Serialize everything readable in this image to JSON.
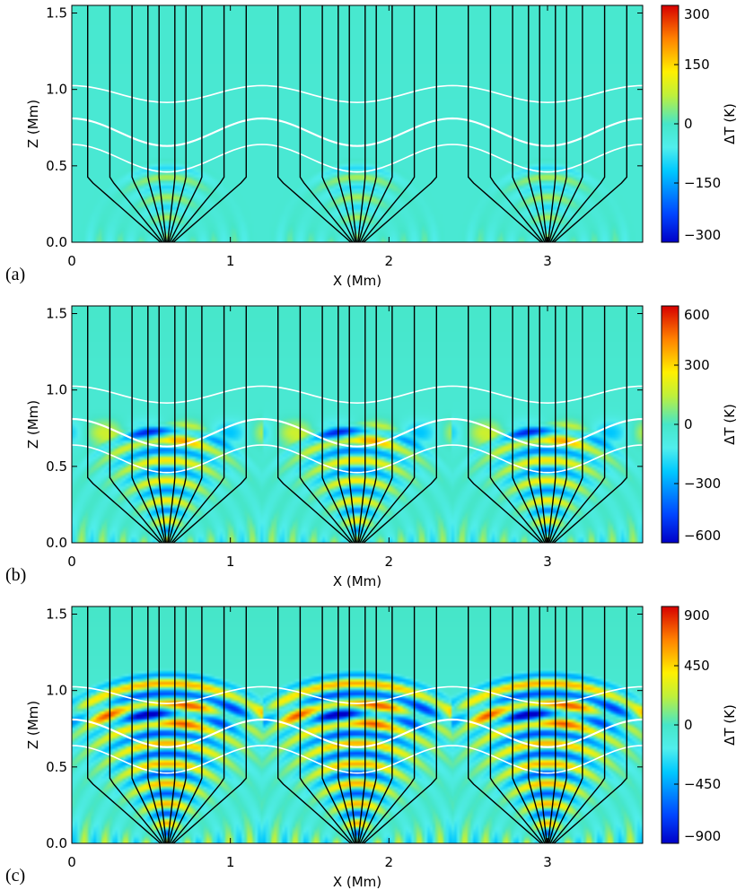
{
  "chart_data": [
    {
      "type": "heatmap",
      "panel_label": "(a)",
      "xlabel": "X (Mm)",
      "ylabel": "Z (Mm)",
      "xlim": [
        0,
        3.6
      ],
      "ylim": [
        0,
        1.55
      ],
      "xticks": [
        0,
        1,
        2,
        3
      ],
      "yticks": [
        0.0,
        0.5,
        1.0,
        1.5
      ],
      "ytick_labels": [
        "0.0",
        "0.5",
        "1.0",
        "1.5"
      ],
      "colorbar": {
        "label": "ΔT (K)",
        "min": -300,
        "max": 300,
        "ticks": [
          300,
          150,
          0,
          -150,
          -300
        ]
      },
      "field_line_centers": [
        0.6,
        1.8,
        3.0
      ],
      "contour_levels": [
        0.97,
        0.72,
        0.55
      ],
      "wave_front": 0.55,
      "amplitude": 0.35
    },
    {
      "type": "heatmap",
      "panel_label": "(b)",
      "xlabel": "X (Mm)",
      "ylabel": "Z (Mm)",
      "xlim": [
        0,
        3.6
      ],
      "ylim": [
        0,
        1.55
      ],
      "xticks": [
        0,
        1,
        2,
        3
      ],
      "yticks": [
        0.0,
        0.5,
        1.0,
        1.5
      ],
      "ytick_labels": [
        "0.0",
        "0.5",
        "1.0",
        "1.5"
      ],
      "colorbar": {
        "label": "ΔT (K)",
        "min": -600,
        "max": 600,
        "ticks": [
          600,
          300,
          0,
          -300,
          -600
        ]
      },
      "field_line_centers": [
        0.6,
        1.8,
        3.0
      ],
      "contour_levels": [
        0.97,
        0.72,
        0.55
      ],
      "wave_front": 0.8,
      "amplitude": 0.7
    },
    {
      "type": "heatmap",
      "panel_label": "(c)",
      "xlabel": "X (Mm)",
      "ylabel": "Z (Mm)",
      "xlim": [
        0,
        3.6
      ],
      "ylim": [
        0,
        1.55
      ],
      "xticks": [
        0,
        1,
        2,
        3
      ],
      "yticks": [
        0.0,
        0.5,
        1.0,
        1.5
      ],
      "ytick_labels": [
        "0.0",
        "0.5",
        "1.0",
        "1.5"
      ],
      "colorbar": {
        "label": "ΔT (K)",
        "min": -900,
        "max": 900,
        "ticks": [
          900,
          450,
          0,
          -450,
          -900
        ]
      },
      "field_line_centers": [
        0.6,
        1.8,
        3.0
      ],
      "contour_levels": [
        0.97,
        0.72,
        0.55
      ],
      "wave_front": 1.15,
      "amplitude": 0.9
    }
  ]
}
